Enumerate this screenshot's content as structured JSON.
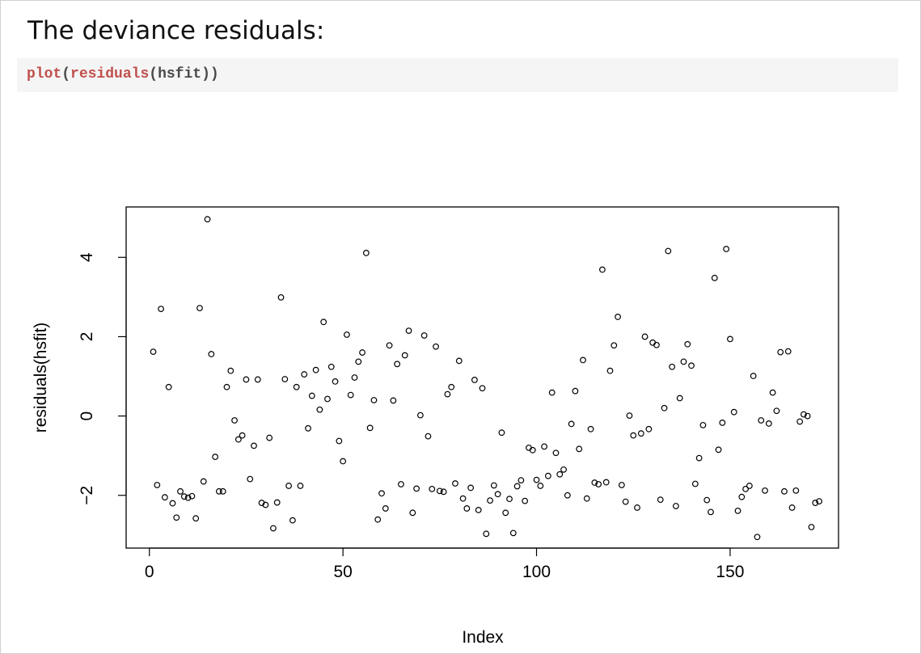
{
  "heading": "The deviance residuals:",
  "code": {
    "fn_outer": "plot",
    "open1": "(",
    "fn_inner": "residuals",
    "open2": "(",
    "arg": "hsfit",
    "close": "))"
  },
  "chart_data": {
    "type": "scatter",
    "xlabel": "Index",
    "ylabel": "residuals(hsfit)",
    "xlim": [
      -6,
      178
    ],
    "ylim": [
      -3.33,
      5.27
    ],
    "xticks": [
      0,
      50,
      100,
      150
    ],
    "yticks": [
      -2,
      0,
      2,
      4
    ],
    "grid": false,
    "marker": "open-circle",
    "x": [
      1,
      2,
      3,
      4,
      5,
      6,
      7,
      8,
      9,
      10,
      11,
      12,
      13,
      14,
      15,
      16,
      17,
      18,
      19,
      20,
      21,
      22,
      23,
      24,
      25,
      26,
      27,
      28,
      29,
      30,
      31,
      32,
      33,
      34,
      35,
      36,
      37,
      38,
      39,
      40,
      41,
      42,
      43,
      44,
      45,
      46,
      47,
      48,
      49,
      50,
      51,
      52,
      53,
      54,
      55,
      56,
      57,
      58,
      59,
      60,
      61,
      62,
      63,
      64,
      65,
      66,
      67,
      68,
      69,
      70,
      71,
      72,
      73,
      74,
      75,
      76,
      77,
      78,
      79,
      80,
      81,
      82,
      83,
      84,
      85,
      86,
      87,
      88,
      89,
      90,
      91,
      92,
      93,
      94,
      95,
      96,
      97,
      98,
      99,
      100,
      101,
      102,
      103,
      104,
      105,
      106,
      107,
      108,
      109,
      110,
      111,
      112,
      113,
      114,
      115,
      116,
      117,
      118,
      119,
      120,
      121,
      122,
      123,
      124,
      125,
      126,
      127,
      128,
      129,
      130,
      131,
      132,
      133,
      134,
      135,
      136,
      137,
      138,
      139,
      140,
      141,
      142,
      143,
      144,
      145,
      146,
      147,
      148,
      149,
      150,
      151,
      152,
      153,
      154,
      155,
      156,
      157,
      158,
      159,
      160,
      161,
      162,
      163,
      164,
      165,
      166,
      167,
      168,
      169,
      170,
      171,
      172,
      173
    ],
    "y": [
      1.62,
      -1.74,
      2.7,
      -2.05,
      0.73,
      -2.2,
      -2.56,
      -1.9,
      -2.03,
      -2.06,
      -2.02,
      -2.58,
      2.72,
      -1.65,
      4.96,
      1.56,
      -1.03,
      -1.9,
      -1.9,
      0.73,
      1.14,
      -0.11,
      -0.59,
      -0.49,
      0.92,
      -1.59,
      -0.75,
      0.92,
      -2.19,
      -2.24,
      -0.55,
      -2.83,
      -2.18,
      2.99,
      0.93,
      -1.76,
      -2.63,
      0.73,
      -1.76,
      1.05,
      -0.31,
      0.51,
      1.16,
      0.16,
      2.37,
      0.43,
      1.24,
      0.87,
      -0.63,
      -1.14,
      2.05,
      0.53,
      0.97,
      1.37,
      1.6,
      4.11,
      -0.3,
      0.4,
      -2.61,
      -1.95,
      -2.33,
      1.78,
      0.39,
      1.31,
      -1.72,
      1.53,
      2.15,
      -2.44,
      -1.83,
      0.02,
      2.03,
      -0.51,
      -1.84,
      1.75,
      -1.89,
      -1.91,
      0.55,
      0.73,
      -1.7,
      1.39,
      -2.08,
      -2.33,
      -1.81,
      0.91,
      -2.37,
      0.7,
      -2.97,
      -2.13,
      -1.75,
      -1.97,
      -0.42,
      -2.44,
      -2.09,
      -2.95,
      -1.77,
      -1.62,
      -2.14,
      -0.8,
      -0.86,
      -1.61,
      -1.76,
      -0.77,
      -1.51,
      0.59,
      -0.93,
      -1.47,
      -1.35,
      -2,
      -0.2,
      0.63,
      -0.83,
      1.41,
      -2.08,
      -0.33,
      -1.68,
      -1.72,
      3.69,
      -1.67,
      1.14,
      1.78,
      2.5,
      -1.74,
      -2.16,
      0.01,
      -0.49,
      -2.31,
      -0.44,
      2.0,
      -0.33,
      1.85,
      1.79,
      -2.11,
      0.2,
      4.16,
      1.24,
      -2.27,
      0.45,
      1.37,
      1.81,
      1.27,
      -1.71,
      -1.06,
      -0.23,
      -2.12,
      -2.42,
      3.48,
      -0.85,
      -0.17,
      4.21,
      1.94,
      0.1,
      -2.39,
      -2.04,
      -1.84,
      -1.76,
      1.01,
      -3.05,
      -0.11,
      -1.88,
      -0.19,
      0.59,
      0.13,
      1.61,
      -1.9,
      1.63,
      -2.31,
      -1.88,
      -0.14,
      0.04,
      0.0,
      -2.8,
      -2.19,
      -2.15
    ]
  }
}
